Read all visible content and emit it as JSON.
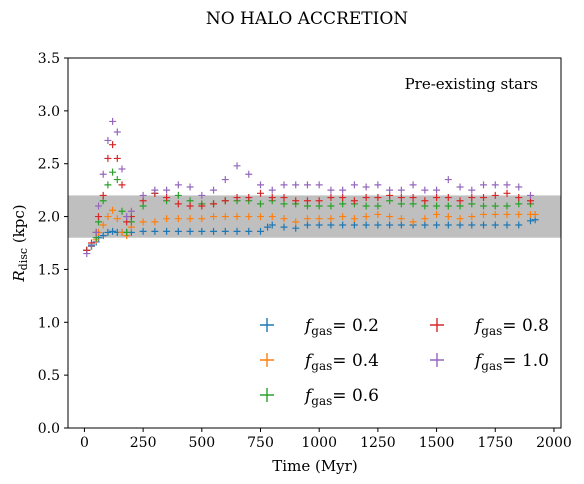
{
  "chart_data": {
    "type": "scatter",
    "title": "NO HALO ACCRETION",
    "annotation": "Pre-existing stars",
    "xlabel": "Time (Myr)",
    "ylabel_main": "R",
    "ylabel_sub": "disc",
    "ylabel_unit": " (kpc)",
    "xlim": [
      -70,
      2030
    ],
    "ylim": [
      0,
      3.5
    ],
    "xticks": [
      0,
      250,
      500,
      750,
      1000,
      1250,
      1500,
      1750,
      2000
    ],
    "xtick_labels": [
      "0",
      "250",
      "500",
      "750",
      "1000",
      "1250",
      "1500",
      "1750",
      "2000"
    ],
    "yticks": [
      0,
      0.5,
      1.0,
      1.5,
      2.0,
      2.5,
      3.0,
      3.5
    ],
    "ytick_labels": [
      "0.0",
      "0.5",
      "1.0",
      "1.5",
      "2.0",
      "2.5",
      "3.0",
      "3.5"
    ],
    "band": {
      "y0": 1.8,
      "y1": 2.2,
      "color": "#bfbfbf"
    },
    "grid": false,
    "legend_position": "lower-right",
    "marker": "plus",
    "series": [
      {
        "name": "= 0.2",
        "sym": "f",
        "sub": "gas",
        "color": "#1f77b4",
        "x": [
          10,
          30,
          50,
          60,
          80,
          100,
          120,
          140,
          160,
          180,
          200,
          250,
          300,
          350,
          400,
          450,
          500,
          550,
          600,
          650,
          700,
          750,
          780,
          800,
          850,
          900,
          950,
          1000,
          1050,
          1100,
          1150,
          1200,
          1250,
          1300,
          1350,
          1400,
          1450,
          1500,
          1550,
          1600,
          1650,
          1700,
          1750,
          1800,
          1850,
          1900,
          1920
        ],
        "y": [
          1.68,
          1.73,
          1.76,
          1.8,
          1.82,
          1.85,
          1.86,
          1.85,
          1.85,
          1.85,
          1.85,
          1.86,
          1.86,
          1.86,
          1.86,
          1.86,
          1.86,
          1.86,
          1.86,
          1.86,
          1.86,
          1.86,
          1.9,
          1.92,
          1.9,
          1.89,
          1.92,
          1.92,
          1.92,
          1.92,
          1.92,
          1.92,
          1.92,
          1.92,
          1.92,
          1.92,
          1.92,
          1.92,
          1.92,
          1.92,
          1.92,
          1.92,
          1.92,
          1.92,
          1.92,
          1.96,
          1.97
        ]
      },
      {
        "name": "= 0.4",
        "sym": "f",
        "sub": "gas",
        "color": "#ff7f0e",
        "x": [
          10,
          30,
          50,
          60,
          80,
          100,
          120,
          140,
          160,
          180,
          200,
          250,
          300,
          350,
          400,
          450,
          500,
          550,
          600,
          650,
          700,
          750,
          800,
          850,
          900,
          950,
          1000,
          1050,
          1100,
          1150,
          1200,
          1250,
          1300,
          1350,
          1400,
          1450,
          1500,
          1550,
          1600,
          1650,
          1700,
          1750,
          1800,
          1850,
          1900,
          1920
        ],
        "y": [
          1.68,
          1.72,
          1.78,
          1.85,
          1.92,
          2.0,
          2.06,
          1.98,
          1.85,
          1.82,
          1.9,
          1.95,
          1.95,
          1.98,
          1.98,
          1.98,
          1.98,
          2.0,
          2.0,
          2.0,
          2.0,
          2.0,
          2.0,
          1.98,
          1.95,
          1.98,
          1.98,
          1.98,
          2.0,
          1.98,
          2.0,
          2.02,
          2.0,
          1.98,
          1.95,
          1.98,
          2.02,
          2.0,
          1.98,
          2.0,
          2.02,
          2.02,
          2.02,
          2.02,
          2.02,
          2.02
        ]
      },
      {
        "name": "= 0.6",
        "sym": "f",
        "sub": "gas",
        "color": "#2ca02c",
        "x": [
          10,
          30,
          50,
          60,
          80,
          100,
          120,
          140,
          160,
          180,
          200,
          250,
          300,
          350,
          400,
          450,
          500,
          550,
          600,
          650,
          700,
          750,
          800,
          850,
          900,
          950,
          1000,
          1050,
          1100,
          1150,
          1200,
          1250,
          1300,
          1350,
          1400,
          1450,
          1500,
          1550,
          1600,
          1650,
          1700,
          1750,
          1800,
          1850,
          1900
        ],
        "y": [
          1.68,
          1.72,
          1.8,
          1.95,
          2.15,
          2.3,
          2.42,
          2.35,
          2.05,
          1.85,
          1.95,
          2.1,
          2.22,
          2.15,
          2.2,
          2.15,
          2.12,
          2.12,
          2.15,
          2.15,
          2.15,
          2.12,
          2.15,
          2.12,
          2.12,
          2.1,
          2.1,
          2.1,
          2.12,
          2.12,
          2.1,
          2.1,
          2.15,
          2.12,
          2.12,
          2.1,
          2.1,
          2.1,
          2.1,
          2.12,
          2.1,
          2.1,
          2.1,
          2.12,
          2.12
        ]
      },
      {
        "name": "= 0.8",
        "sym": "f",
        "sub": "gas",
        "color": "#d62728",
        "x": [
          10,
          30,
          50,
          60,
          80,
          100,
          120,
          140,
          160,
          180,
          200,
          250,
          300,
          350,
          400,
          450,
          500,
          550,
          600,
          650,
          700,
          750,
          800,
          850,
          900,
          950,
          1000,
          1050,
          1100,
          1150,
          1200,
          1250,
          1300,
          1350,
          1400,
          1450,
          1500,
          1550,
          1600,
          1650,
          1700,
          1750,
          1800,
          1850,
          1900
        ],
        "y": [
          1.68,
          1.75,
          1.85,
          2.0,
          2.2,
          2.55,
          2.68,
          2.55,
          2.3,
          1.95,
          2.0,
          2.15,
          2.22,
          2.18,
          2.12,
          2.1,
          2.1,
          2.12,
          2.15,
          2.18,
          2.18,
          2.22,
          2.18,
          2.18,
          2.15,
          2.15,
          2.15,
          2.18,
          2.18,
          2.15,
          2.18,
          2.18,
          2.2,
          2.18,
          2.18,
          2.15,
          2.18,
          2.18,
          2.15,
          2.18,
          2.18,
          2.2,
          2.22,
          2.18,
          2.15
        ]
      },
      {
        "name": "= 1.0",
        "sym": "f",
        "sub": "gas",
        "color": "#9467bd",
        "x": [
          10,
          30,
          50,
          60,
          80,
          100,
          120,
          140,
          160,
          180,
          200,
          250,
          300,
          350,
          400,
          450,
          500,
          550,
          600,
          650,
          700,
          750,
          800,
          850,
          900,
          950,
          1000,
          1050,
          1100,
          1150,
          1200,
          1250,
          1300,
          1350,
          1400,
          1450,
          1500,
          1550,
          1600,
          1650,
          1700,
          1750,
          1800,
          1850,
          1900
        ],
        "y": [
          1.65,
          1.72,
          1.85,
          2.1,
          2.4,
          2.72,
          2.9,
          2.8,
          2.45,
          2.0,
          2.05,
          2.2,
          2.25,
          2.25,
          2.3,
          2.28,
          2.2,
          2.25,
          2.35,
          2.48,
          2.4,
          2.3,
          2.25,
          2.3,
          2.3,
          2.3,
          2.3,
          2.25,
          2.25,
          2.3,
          2.28,
          2.3,
          2.25,
          2.25,
          2.3,
          2.25,
          2.25,
          2.35,
          2.28,
          2.25,
          2.3,
          2.3,
          2.3,
          2.28,
          2.2
        ]
      }
    ]
  }
}
